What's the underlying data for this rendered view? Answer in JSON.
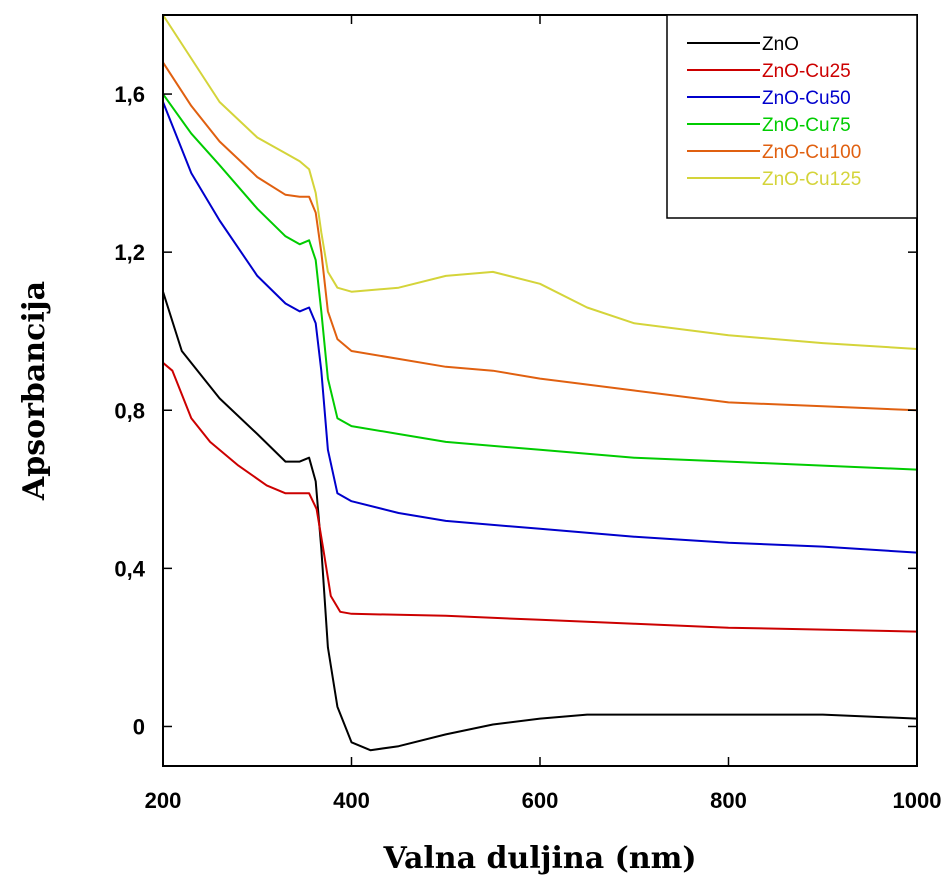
{
  "chart_data": {
    "type": "line",
    "xlabel": "Valna duljina (nm)",
    "ylabel": "Apsorbancija",
    "xlim": [
      200,
      1000
    ],
    "ylim": [
      -0.1,
      1.8
    ],
    "xticks": [
      200,
      400,
      600,
      800,
      1000
    ],
    "xtick_labels": [
      "200",
      "400",
      "600",
      "800",
      "1000"
    ],
    "yticks": [
      0,
      0.4,
      0.8,
      1.2,
      1.6
    ],
    "ytick_labels": [
      "0",
      "0,4",
      "0,8",
      "1,2",
      "1,6"
    ],
    "grid": false,
    "legend_position": "top-right",
    "series": [
      {
        "name": "ZnO",
        "color": "#000000",
        "points": [
          [
            200,
            1.1
          ],
          [
            220,
            0.95
          ],
          [
            260,
            0.83
          ],
          [
            300,
            0.74
          ],
          [
            330,
            0.67
          ],
          [
            345,
            0.67
          ],
          [
            355,
            0.68
          ],
          [
            362,
            0.62
          ],
          [
            368,
            0.45
          ],
          [
            375,
            0.2
          ],
          [
            385,
            0.05
          ],
          [
            400,
            -0.04
          ],
          [
            420,
            -0.06
          ],
          [
            450,
            -0.05
          ],
          [
            500,
            -0.02
          ],
          [
            550,
            0.005
          ],
          [
            600,
            0.02
          ],
          [
            650,
            0.03
          ],
          [
            700,
            0.03
          ],
          [
            800,
            0.03
          ],
          [
            900,
            0.03
          ],
          [
            1000,
            0.02
          ]
        ]
      },
      {
        "name": "ZnO-Cu25",
        "color": "#cc0000",
        "points": [
          [
            200,
            0.92
          ],
          [
            210,
            0.9
          ],
          [
            230,
            0.78
          ],
          [
            250,
            0.72
          ],
          [
            280,
            0.66
          ],
          [
            310,
            0.61
          ],
          [
            330,
            0.59
          ],
          [
            355,
            0.59
          ],
          [
            363,
            0.55
          ],
          [
            370,
            0.45
          ],
          [
            378,
            0.33
          ],
          [
            388,
            0.29
          ],
          [
            400,
            0.285
          ],
          [
            500,
            0.28
          ],
          [
            600,
            0.27
          ],
          [
            700,
            0.26
          ],
          [
            800,
            0.25
          ],
          [
            900,
            0.245
          ],
          [
            1000,
            0.24
          ]
        ]
      },
      {
        "name": "ZnO-Cu50",
        "color": "#0000cc",
        "points": [
          [
            200,
            1.58
          ],
          [
            230,
            1.4
          ],
          [
            260,
            1.28
          ],
          [
            300,
            1.14
          ],
          [
            330,
            1.07
          ],
          [
            345,
            1.05
          ],
          [
            355,
            1.06
          ],
          [
            362,
            1.02
          ],
          [
            368,
            0.9
          ],
          [
            375,
            0.7
          ],
          [
            385,
            0.59
          ],
          [
            400,
            0.57
          ],
          [
            450,
            0.54
          ],
          [
            500,
            0.52
          ],
          [
            600,
            0.5
          ],
          [
            700,
            0.48
          ],
          [
            800,
            0.465
          ],
          [
            900,
            0.455
          ],
          [
            1000,
            0.44
          ]
        ]
      },
      {
        "name": "ZnO-Cu75",
        "color": "#00cc00",
        "points": [
          [
            200,
            1.6
          ],
          [
            230,
            1.5
          ],
          [
            260,
            1.42
          ],
          [
            300,
            1.31
          ],
          [
            330,
            1.24
          ],
          [
            345,
            1.22
          ],
          [
            355,
            1.23
          ],
          [
            362,
            1.18
          ],
          [
            368,
            1.05
          ],
          [
            375,
            0.88
          ],
          [
            385,
            0.78
          ],
          [
            400,
            0.76
          ],
          [
            450,
            0.74
          ],
          [
            500,
            0.72
          ],
          [
            600,
            0.7
          ],
          [
            700,
            0.68
          ],
          [
            800,
            0.67
          ],
          [
            900,
            0.66
          ],
          [
            1000,
            0.65
          ]
        ]
      },
      {
        "name": "ZnO-Cu100",
        "color": "#e06010",
        "points": [
          [
            200,
            1.68
          ],
          [
            230,
            1.57
          ],
          [
            260,
            1.48
          ],
          [
            300,
            1.39
          ],
          [
            330,
            1.345
          ],
          [
            345,
            1.34
          ],
          [
            355,
            1.34
          ],
          [
            362,
            1.3
          ],
          [
            368,
            1.2
          ],
          [
            375,
            1.05
          ],
          [
            385,
            0.98
          ],
          [
            400,
            0.95
          ],
          [
            450,
            0.93
          ],
          [
            500,
            0.91
          ],
          [
            550,
            0.9
          ],
          [
            600,
            0.88
          ],
          [
            700,
            0.85
          ],
          [
            800,
            0.82
          ],
          [
            900,
            0.81
          ],
          [
            1000,
            0.8
          ]
        ]
      },
      {
        "name": "ZnO-Cu125",
        "color": "#d4d43a",
        "points": [
          [
            200,
            1.8
          ],
          [
            230,
            1.69
          ],
          [
            260,
            1.58
          ],
          [
            300,
            1.49
          ],
          [
            330,
            1.45
          ],
          [
            345,
            1.43
          ],
          [
            355,
            1.41
          ],
          [
            362,
            1.35
          ],
          [
            368,
            1.25
          ],
          [
            375,
            1.15
          ],
          [
            385,
            1.11
          ],
          [
            400,
            1.1
          ],
          [
            450,
            1.11
          ],
          [
            500,
            1.14
          ],
          [
            550,
            1.15
          ],
          [
            600,
            1.12
          ],
          [
            650,
            1.06
          ],
          [
            700,
            1.02
          ],
          [
            800,
            0.99
          ],
          [
            900,
            0.97
          ],
          [
            1000,
            0.955
          ]
        ]
      }
    ]
  }
}
